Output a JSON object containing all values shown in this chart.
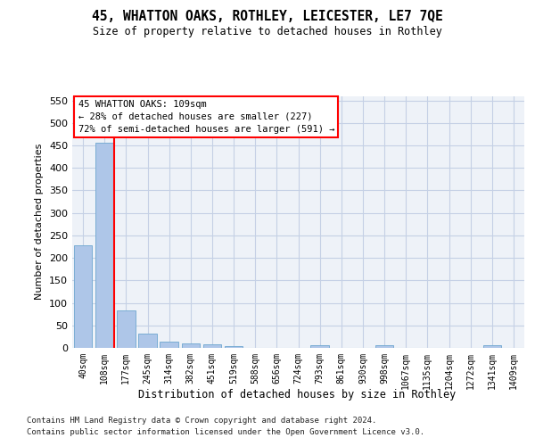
{
  "title": "45, WHATTON OAKS, ROTHLEY, LEICESTER, LE7 7QE",
  "subtitle": "Size of property relative to detached houses in Rothley",
  "xlabel": "Distribution of detached houses by size in Rothley",
  "ylabel": "Number of detached properties",
  "categories": [
    "40sqm",
    "108sqm",
    "177sqm",
    "245sqm",
    "314sqm",
    "382sqm",
    "451sqm",
    "519sqm",
    "588sqm",
    "656sqm",
    "724sqm",
    "793sqm",
    "861sqm",
    "930sqm",
    "998sqm",
    "1067sqm",
    "1135sqm",
    "1204sqm",
    "1272sqm",
    "1341sqm",
    "1409sqm"
  ],
  "values": [
    228,
    455,
    84,
    32,
    13,
    10,
    8,
    4,
    0,
    0,
    0,
    5,
    0,
    0,
    5,
    0,
    0,
    0,
    0,
    5,
    0
  ],
  "bar_color": "#aec6e8",
  "bar_edge_color": "#7aadd4",
  "red_line_x": 1.43,
  "annotation_text": "45 WHATTON OAKS: 109sqm\n← 28% of detached houses are smaller (227)\n72% of semi-detached houses are larger (591) →",
  "red_line_color": "red",
  "ylim_max": 560,
  "yticks": [
    0,
    50,
    100,
    150,
    200,
    250,
    300,
    350,
    400,
    450,
    500,
    550
  ],
  "bg_color": "#eef2f8",
  "grid_color": "#c5d0e5",
  "footer1": "Contains HM Land Registry data © Crown copyright and database right 2024.",
  "footer2": "Contains public sector information licensed under the Open Government Licence v3.0."
}
